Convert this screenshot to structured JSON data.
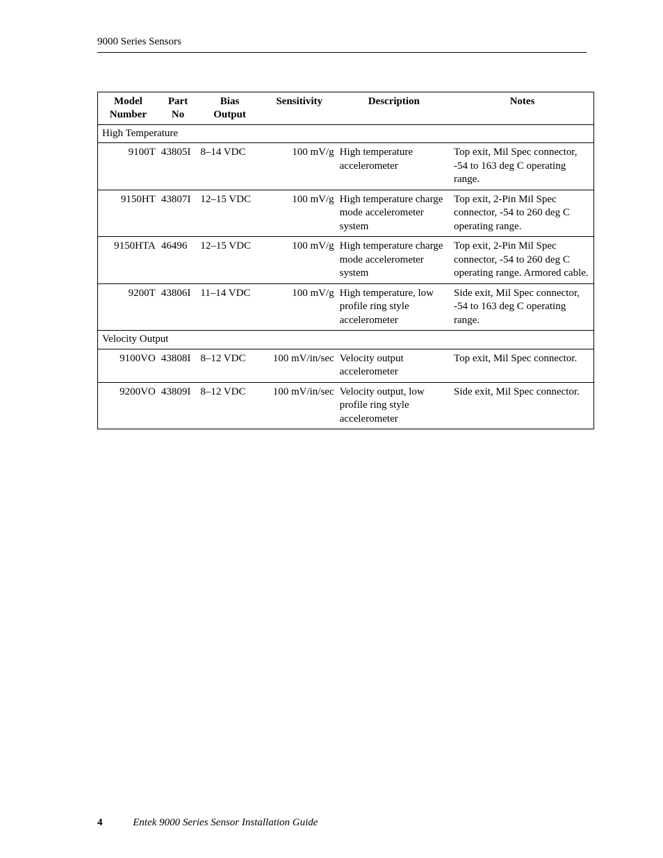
{
  "header": {
    "running": "9000 Series Sensors"
  },
  "table": {
    "columns": [
      {
        "l1": "Model",
        "l2": "Number"
      },
      {
        "l1": "Part",
        "l2": "No"
      },
      {
        "l1": "Bias",
        "l2": "Output"
      },
      {
        "l1": "Sensitivity",
        "l2": ""
      },
      {
        "l1": "Description",
        "l2": ""
      },
      {
        "l1": "Notes",
        "l2": ""
      }
    ],
    "sections": [
      {
        "title": "High Temperature",
        "rows": [
          {
            "model": "9100T",
            "part": "43805I",
            "bias": "8–14 VDC",
            "sens": "100 mV/g",
            "desc": "High temperature accelerometer",
            "notes": "Top exit, Mil Spec connector, -54 to 163 deg C operating range."
          },
          {
            "model": "9150HT",
            "part": "43807I",
            "bias": "12–15 VDC",
            "sens": "100 mV/g",
            "desc": "High temperature charge mode accelerometer system",
            "notes": "Top exit, 2-Pin Mil Spec connector, -54 to 260 deg C operating range."
          },
          {
            "model": "9150HTA",
            "part": "46496",
            "bias": "12–15 VDC",
            "sens": "100 mV/g",
            "desc": "High temperature charge mode accelerometer system",
            "notes": "Top exit, 2-Pin Mil Spec connector, -54 to 260 deg C operating range. Armored cable."
          },
          {
            "model": "9200T",
            "part": "43806I",
            "bias": "11–14 VDC",
            "sens": "100 mV/g",
            "desc": "High temperature, low profile ring style accelerometer",
            "notes": "Side exit, Mil Spec connector, -54 to 163 deg C operating range."
          }
        ]
      },
      {
        "title": "Velocity Output",
        "rows": [
          {
            "model": "9100VO",
            "part": "43808I",
            "bias": "8–12 VDC",
            "sens": "100 mV/in/sec",
            "desc": "Velocity output accelerometer",
            "notes": "Top exit, Mil Spec connector."
          },
          {
            "model": "9200VO",
            "part": "43809I",
            "bias": "8–12 VDC",
            "sens": "100 mV/in/sec",
            "desc": "Velocity output, low profile ring style accelerometer",
            "notes": "Side exit, Mil Spec connector."
          }
        ]
      }
    ]
  },
  "footer": {
    "page": "4",
    "title": "Entek 9000 Series Sensor Installation Guide"
  }
}
